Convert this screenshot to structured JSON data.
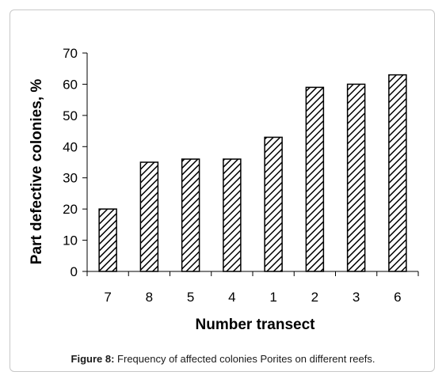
{
  "chart_data": {
    "type": "bar",
    "categories": [
      "7",
      "8",
      "5",
      "4",
      "1",
      "2",
      "3",
      "6"
    ],
    "values": [
      20,
      35,
      36,
      36,
      43,
      59,
      60,
      63
    ],
    "title": "",
    "xlabel": "Number transect",
    "ylabel": "Part defective colonies, %",
    "ylim": [
      0,
      70
    ],
    "yticks": [
      0,
      10,
      20,
      30,
      40,
      50,
      60,
      70
    ],
    "grid": false,
    "bar_fill": "diagonal-hatch",
    "bar_color": "#000000"
  },
  "caption": {
    "label": "Figure 8:",
    "text": "Frequency of affected colonies Porites on different reefs."
  }
}
